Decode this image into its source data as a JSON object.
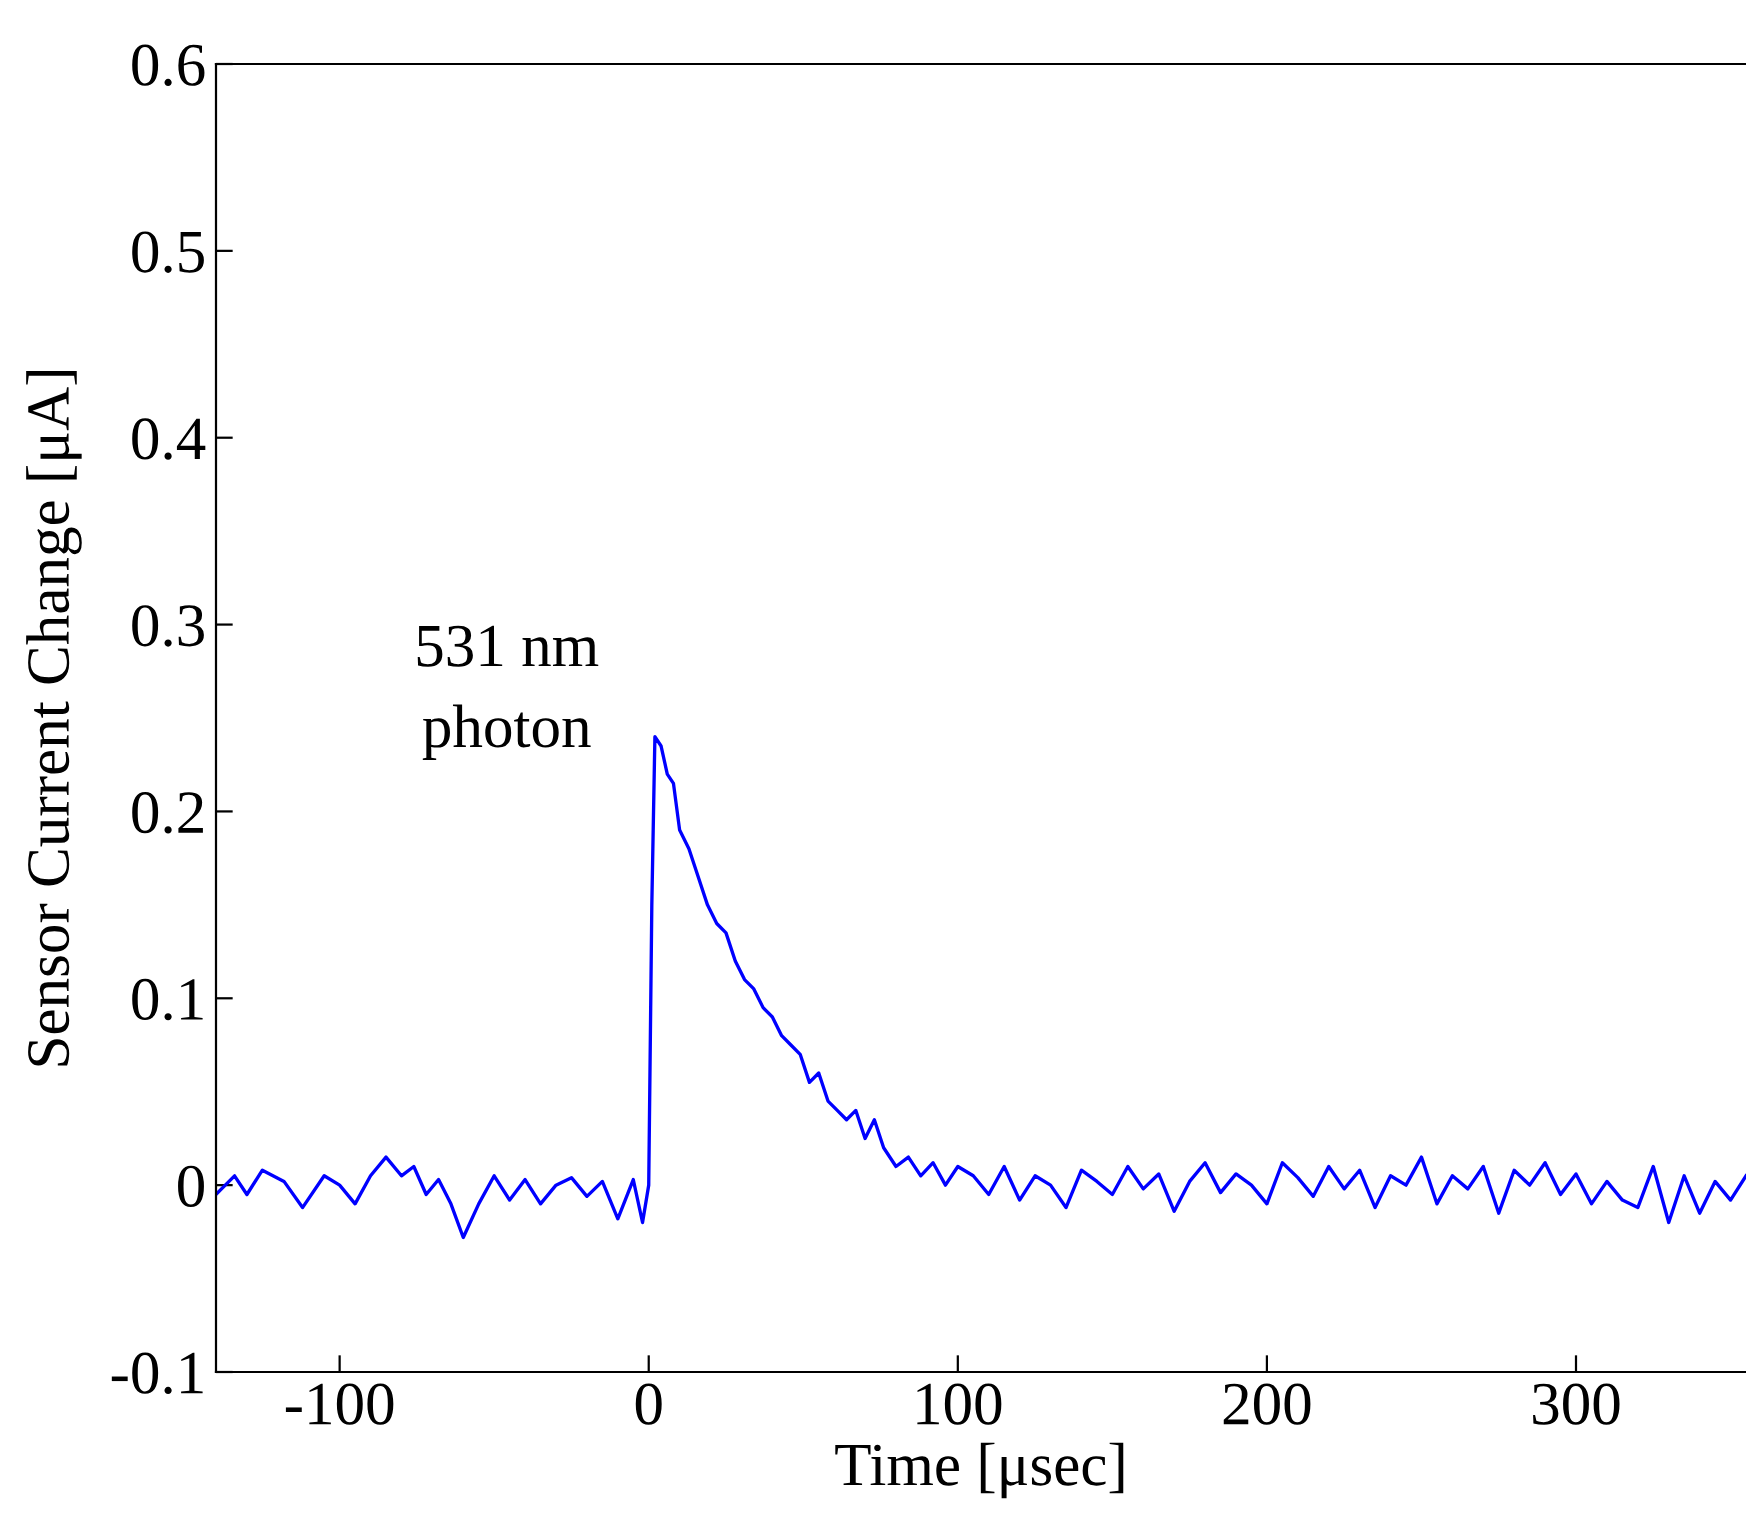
{
  "chart_data": {
    "type": "line",
    "xlabel": "Time [μsec]",
    "ylabel": "Sensor Current Change [μA]",
    "annotations": [
      "531 nm\nphoton"
    ],
    "xlim": [
      -140,
      355
    ],
    "ylim": [
      -0.1,
      0.6
    ],
    "xticks": [
      -100,
      0,
      100,
      200,
      300
    ],
    "yticks": [
      {
        "value": -0.1,
        "label": "-0.1"
      },
      0,
      0.1,
      0.2,
      0.3,
      0.4,
      0.5,
      0.6
    ],
    "grid": false,
    "legend": false,
    "marker": "none",
    "line_style": "solid",
    "series": [
      {
        "color": "#0000ff",
        "x": [
          -140,
          -134,
          -130,
          -125,
          -118,
          -112,
          -105,
          -100,
          -95,
          -90,
          -85,
          -80,
          -76,
          -72,
          -68,
          -64,
          -60,
          -55,
          -50,
          -45,
          -40,
          -35,
          -30,
          -25,
          -20,
          -15,
          -10,
          -5,
          -2,
          0,
          1,
          2,
          4,
          6,
          8,
          10,
          13,
          16,
          19,
          22,
          25,
          28,
          31,
          34,
          37,
          40,
          43,
          46,
          49,
          52,
          55,
          58,
          61,
          64,
          67,
          70,
          73,
          76,
          80,
          84,
          88,
          92,
          96,
          100,
          105,
          110,
          115,
          120,
          125,
          130,
          135,
          140,
          145,
          150,
          155,
          160,
          165,
          170,
          175,
          180,
          185,
          190,
          195,
          200,
          205,
          210,
          215,
          220,
          225,
          230,
          235,
          240,
          245,
          250,
          255,
          260,
          265,
          270,
          275,
          280,
          285,
          290,
          295,
          300,
          305,
          310,
          315,
          320,
          325,
          330,
          335,
          340,
          345,
          350,
          355
        ],
        "values": [
          -0.005,
          0.005,
          -0.005,
          0.008,
          0.002,
          -0.012,
          0.005,
          0.0,
          -0.01,
          0.005,
          0.015,
          0.005,
          0.01,
          -0.005,
          0.003,
          -0.01,
          -0.028,
          -0.01,
          0.005,
          -0.008,
          0.003,
          -0.01,
          0.0,
          0.004,
          -0.006,
          0.002,
          -0.018,
          0.003,
          -0.02,
          0.0,
          0.15,
          0.24,
          0.235,
          0.22,
          0.215,
          0.19,
          0.18,
          0.165,
          0.15,
          0.14,
          0.135,
          0.12,
          0.11,
          0.105,
          0.095,
          0.09,
          0.08,
          0.075,
          0.07,
          0.055,
          0.06,
          0.045,
          0.04,
          0.035,
          0.04,
          0.025,
          0.035,
          0.02,
          0.01,
          0.015,
          0.005,
          0.012,
          0.0,
          0.01,
          0.005,
          -0.005,
          0.01,
          -0.008,
          0.005,
          0.0,
          -0.012,
          0.008,
          0.002,
          -0.005,
          0.01,
          -0.002,
          0.006,
          -0.014,
          0.002,
          0.012,
          -0.004,
          0.006,
          0.0,
          -0.01,
          0.012,
          0.004,
          -0.006,
          0.01,
          -0.002,
          0.008,
          -0.012,
          0.005,
          0.0,
          0.015,
          -0.01,
          0.005,
          -0.002,
          0.01,
          -0.015,
          0.008,
          0.0,
          0.012,
          -0.005,
          0.006,
          -0.01,
          0.002,
          -0.008,
          -0.012,
          0.01,
          -0.02,
          0.005,
          -0.015,
          0.002,
          -0.008,
          0.005
        ]
      }
    ]
  }
}
